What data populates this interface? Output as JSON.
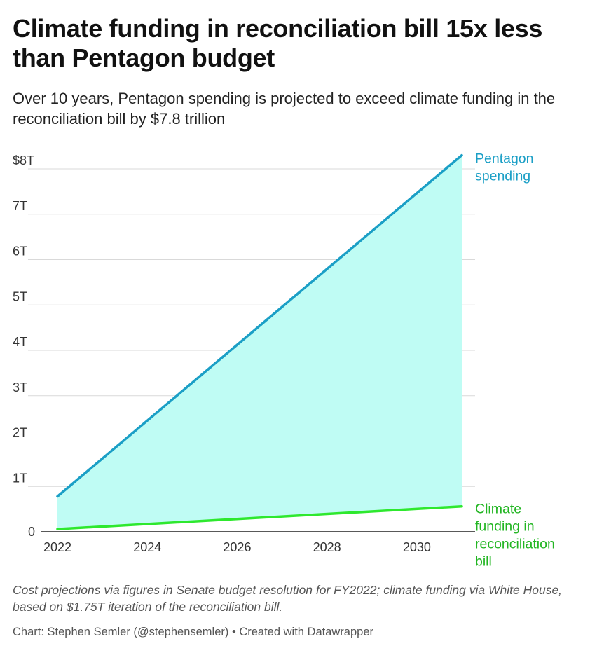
{
  "header": {
    "title": "Climate funding in reconciliation bill 15x less than Pentagon budget",
    "subtitle": "Over 10 years, Pentagon spending is projected to exceed climate funding in the reconciliation bill by $7.8 trillion"
  },
  "footer": {
    "notes": "Cost projections via figures in Senate budget resolution for FY2022; climate funding via White House, based on $1.75T iteration of the reconciliation bill.",
    "credit": "Chart: Stephen Semler (@stephensemler) • Created with Datawrapper"
  },
  "chart_data": {
    "type": "area",
    "title": "Climate funding in reconciliation bill 15x less than Pentagon budget",
    "subtitle": "Over 10 years, Pentagon spending is projected to exceed climate funding in the reconciliation bill by $7.8 trillion",
    "x_unit": "year",
    "y_unit": "trillion US dollars",
    "xlim": [
      2022,
      2031
    ],
    "ylim": [
      0,
      8
    ],
    "x_ticks": [
      2022,
      2024,
      2026,
      2028,
      2030
    ],
    "x_tick_labels": [
      "2022",
      "2024",
      "2026",
      "2028",
      "2030"
    ],
    "y_ticks": [
      0,
      1,
      2,
      3,
      4,
      5,
      6,
      7,
      8
    ],
    "y_tick_labels": [
      "0",
      "1T",
      "2T",
      "3T",
      "4T",
      "5T",
      "6T",
      "7T",
      "$8T"
    ],
    "grid": true,
    "fill_between_series": true,
    "fill_color": "#bffcf4",
    "series": [
      {
        "name": "Pentagon spending",
        "label_lines": [
          "Pentagon",
          "spending"
        ],
        "color": "#1b9fc6",
        "points": [
          [
            2022,
            0.78
          ],
          [
            2031,
            8.3
          ]
        ]
      },
      {
        "name": "Climate funding in reconciliation bill",
        "label_lines": [
          "Climate",
          "funding in",
          "reconciliation",
          "bill"
        ],
        "color": "#2ee82e",
        "label_color": "#22b522",
        "points": [
          [
            2022,
            0.06
          ],
          [
            2031,
            0.56
          ]
        ]
      }
    ]
  }
}
